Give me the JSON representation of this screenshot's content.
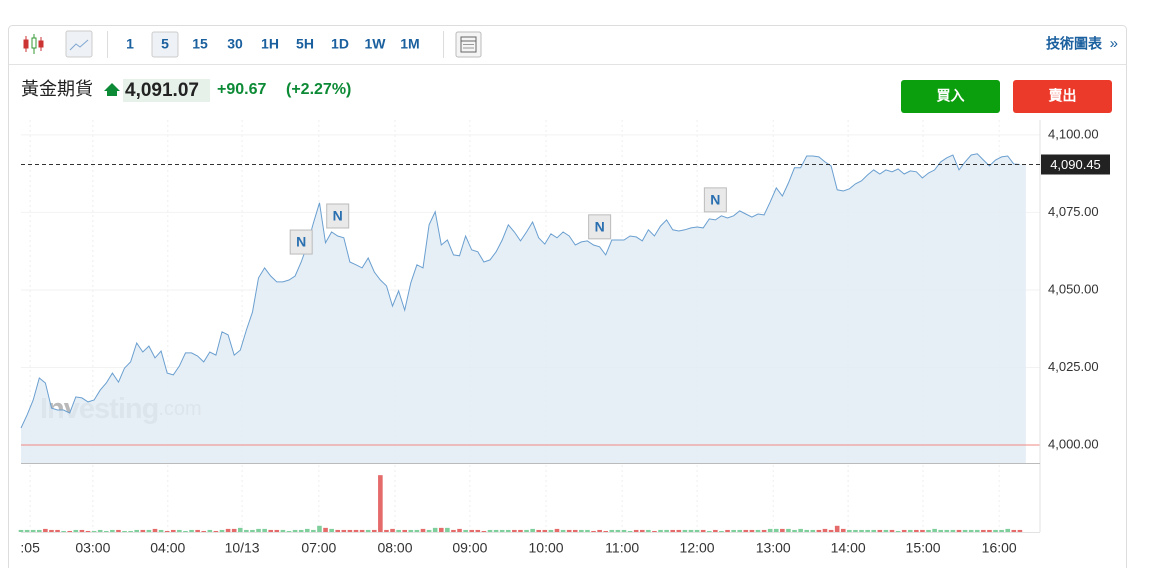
{
  "toolbar": {
    "intervals": [
      "1",
      "5",
      "15",
      "30",
      "1H",
      "5H",
      "1D",
      "1W",
      "1M"
    ],
    "active_index": 1,
    "link": "技術圖表",
    "link_arrow": "»"
  },
  "header": {
    "title": "黃金期貨",
    "last": "4,091.07",
    "change": "+90.67",
    "change_pct": "(+2.27%)",
    "buy": "買入",
    "sell": "賣出"
  },
  "chart_data": {
    "type": "area",
    "color": "#6a9fd0",
    "fill": "#e3ecf5",
    "watermark": "Investing",
    "watermark_suffix": ".com",
    "xlim": [
      0,
      167.3
    ],
    "xticks": [
      {
        "value": 1.5,
        "label": ":05"
      },
      {
        "value": 11.8,
        "label": "03:00"
      },
      {
        "value": 24.1,
        "label": "04:00"
      },
      {
        "value": 36.3,
        "label": "10/13"
      },
      {
        "value": 48.9,
        "label": "07:00"
      },
      {
        "value": 61.4,
        "label": "08:00"
      },
      {
        "value": 73.7,
        "label": "09:00"
      },
      {
        "value": 86.2,
        "label": "10:00"
      },
      {
        "value": 98.7,
        "label": "11:00"
      },
      {
        "value": 111.0,
        "label": "12:00"
      },
      {
        "value": 123.5,
        "label": "13:00"
      },
      {
        "value": 135.8,
        "label": "14:00"
      },
      {
        "value": 148.1,
        "label": "15:00"
      },
      {
        "value": 160.6,
        "label": "16:00"
      }
    ],
    "ylim": [
      3994.2,
      4104.8
    ],
    "yticks": [
      {
        "value": 4000,
        "label": "4,000.00"
      },
      {
        "value": 4025,
        "label": "4,025.00"
      },
      {
        "value": 4050,
        "label": "4,050.00"
      },
      {
        "value": 4075,
        "label": "4,075.00"
      },
      {
        "value": 4100,
        "label": "4,100.00"
      }
    ],
    "grid": true,
    "values": [
      4005.5,
      4009.7,
      4014.5,
      4021.6,
      4020.0,
      4011.9,
      4011.3,
      4011.3,
      4010.3,
      4015.5,
      4015.2,
      4013.9,
      4014.5,
      4017.7,
      4020.0,
      4023.2,
      4020.3,
      4024.8,
      4026.8,
      4032.9,
      4030.0,
      4031.9,
      4028.1,
      4030.3,
      4023.2,
      4022.6,
      4025.5,
      4029.7,
      4029.7,
      4028.7,
      4026.8,
      4030.0,
      4029.0,
      4036.5,
      4035.5,
      4029.0,
      4030.6,
      4037.1,
      4042.9,
      4053.9,
      4057.1,
      4054.5,
      4052.6,
      4052.6,
      4053.2,
      4054.5,
      4059.0,
      4064.5,
      4071.6,
      4078.1,
      4065.2,
      4068.7,
      4067.4,
      4066.8,
      4059.0,
      4058.1,
      4057.1,
      4060.3,
      4055.8,
      4053.2,
      4051.3,
      4044.8,
      4049.7,
      4043.5,
      4052.3,
      4058.1,
      4057.1,
      4071.0,
      4075.2,
      4064.5,
      4066.1,
      4061.3,
      4061.0,
      4067.4,
      4062.9,
      4062.3,
      4059.0,
      4059.7,
      4062.3,
      4066.1,
      4071.0,
      4068.7,
      4065.8,
      4068.7,
      4071.9,
      4066.8,
      4064.8,
      4068.1,
      4066.8,
      4068.7,
      4067.4,
      4064.5,
      4065.5,
      4065.8,
      4064.5,
      4063.9,
      4061.3,
      4066.1,
      4066.1,
      4066.1,
      4067.4,
      4067.1,
      4065.8,
      4069.4,
      4067.4,
      4070.6,
      4072.6,
      4069.4,
      4069.0,
      4069.4,
      4070.0,
      4070.3,
      4070.0,
      4072.9,
      4072.6,
      4073.9,
      4073.2,
      4073.9,
      4075.5,
      4074.5,
      4073.5,
      4074.5,
      4074.2,
      4078.4,
      4082.9,
      4080.3,
      4084.5,
      4089.4,
      4089.4,
      4093.2,
      4093.2,
      4092.9,
      4091.3,
      4090.0,
      4082.3,
      4081.9,
      4082.6,
      4084.2,
      4085.2,
      4087.1,
      4088.7,
      4087.4,
      4088.7,
      4088.1,
      4089.0,
      4087.4,
      4088.4,
      4088.1,
      4086.1,
      4087.7,
      4088.7,
      4091.3,
      4092.6,
      4093.5,
      4088.7,
      4091.3,
      4093.5,
      4093.9,
      4091.9,
      4090.0,
      4091.9,
      4092.9,
      4093.2,
      4090.6,
      4090.45
    ],
    "price_line": {
      "value": 4090.45,
      "label": "4,090.45"
    },
    "reference_line": {
      "value": 4000,
      "color": "#f08a84"
    },
    "news": [
      {
        "x": 46,
        "label": "N"
      },
      {
        "x": 52,
        "label": "N"
      },
      {
        "x": 95,
        "label": "N"
      },
      {
        "x": 114,
        "label": "N"
      }
    ],
    "volume": {
      "vlim": [
        0,
        60
      ],
      "up_color": "#7fcf9c",
      "down_color": "#e56b6b",
      "values": [
        2,
        2,
        2,
        2,
        3,
        2,
        2,
        1,
        1,
        2,
        2,
        1,
        1,
        2,
        1,
        2,
        2,
        1,
        1,
        2,
        2,
        2,
        3,
        2,
        1,
        2,
        2,
        1,
        2,
        2,
        1,
        2,
        1,
        2,
        3,
        3,
        4,
        2,
        2,
        3,
        3,
        2,
        2,
        2,
        1,
        2,
        2,
        3,
        2,
        6,
        4,
        3,
        2,
        2,
        2,
        2,
        2,
        2,
        2,
        55,
        2,
        3,
        2,
        2,
        2,
        2,
        3,
        2,
        4,
        4,
        4,
        2,
        3,
        2,
        2,
        2,
        1,
        2,
        2,
        2,
        2,
        2,
        2,
        2,
        3,
        2,
        2,
        2,
        3,
        2,
        2,
        2,
        2,
        2,
        1,
        2,
        1,
        2,
        2,
        2,
        1,
        2,
        2,
        2,
        1,
        2,
        2,
        2,
        2,
        2,
        2,
        2,
        2,
        1,
        2,
        1,
        2,
        2,
        2,
        2,
        2,
        2,
        2,
        3,
        3,
        3,
        3,
        2,
        3,
        2,
        2,
        2,
        3,
        2,
        6,
        3,
        2,
        2,
        2,
        2,
        2,
        2,
        2,
        2,
        1,
        2,
        2,
        2,
        2,
        2,
        3,
        2,
        2,
        2,
        2,
        2,
        2,
        2,
        2,
        2,
        2,
        2,
        3,
        2,
        2
      ]
    }
  }
}
